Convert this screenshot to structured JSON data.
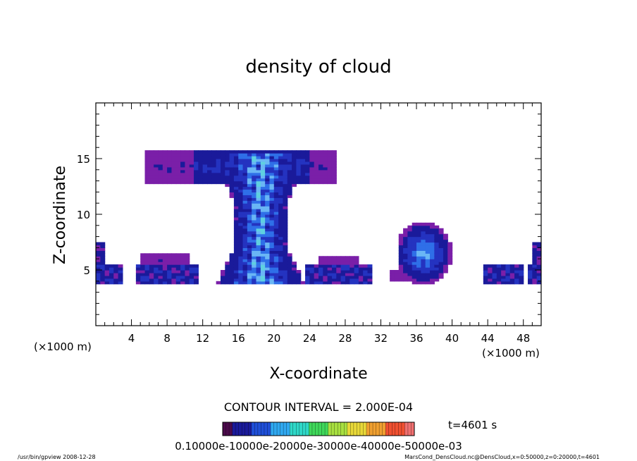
{
  "chart_data": {
    "type": "heatmap",
    "title": "density of cloud",
    "xlabel": "X-coordinate",
    "ylabel": "Z-coordinate",
    "x_unit": "(×1000 m)",
    "y_unit": "(×1000 m)",
    "xlim": [
      0,
      50
    ],
    "ylim": [
      0,
      20
    ],
    "x_ticks": [
      4,
      8,
      12,
      16,
      20,
      24,
      28,
      32,
      36,
      40,
      44,
      48
    ],
    "y_ticks": [
      5,
      10,
      15
    ],
    "grid": false,
    "contour_interval": "CONTOUR INTERVAL = 2.000E-04",
    "time_label": "t=4601 s",
    "colorbar_labels_text": "0.10000e-10000e-20000e-30000e-40000e-50000e-03",
    "colorbar_range": [
      0.0,
      0.0006
    ],
    "footer_left": "/usr/bin/gpview   2008-12-28",
    "footer_right": "MarsCond_DensCloud.nc@DensCloud,x=0:50000,z=0:20000,t=4601",
    "colors": {
      "outer_halo": "#7a1fa8",
      "low": "#1a1a9a",
      "mid": "#2f6fe8",
      "high": "#6ab6f5",
      "peak": "#5fd0e0"
    },
    "regions": [
      {
        "name": "tower",
        "x0": 14,
        "x1": 23,
        "z0": 3.8,
        "z1": 15.5,
        "level": "high"
      },
      {
        "name": "anvil",
        "x0": 5.5,
        "x1": 27,
        "z0": 12.5,
        "z1": 15.8,
        "level": "mid"
      },
      {
        "name": "left-low",
        "x0": 0,
        "x1": 12,
        "z0": 3.8,
        "z1": 6,
        "level": "low"
      },
      {
        "name": "right-low",
        "x0": 24,
        "x1": 31,
        "z0": 3.8,
        "z1": 6.2,
        "level": "low"
      },
      {
        "name": "small-cell",
        "x0": 34,
        "x1": 40,
        "z0": 3.8,
        "z1": 9.2,
        "level": "mid"
      },
      {
        "name": "far-right-low",
        "x0": 43,
        "x1": 50,
        "z0": 3.8,
        "z1": 5.2,
        "level": "low"
      }
    ]
  }
}
